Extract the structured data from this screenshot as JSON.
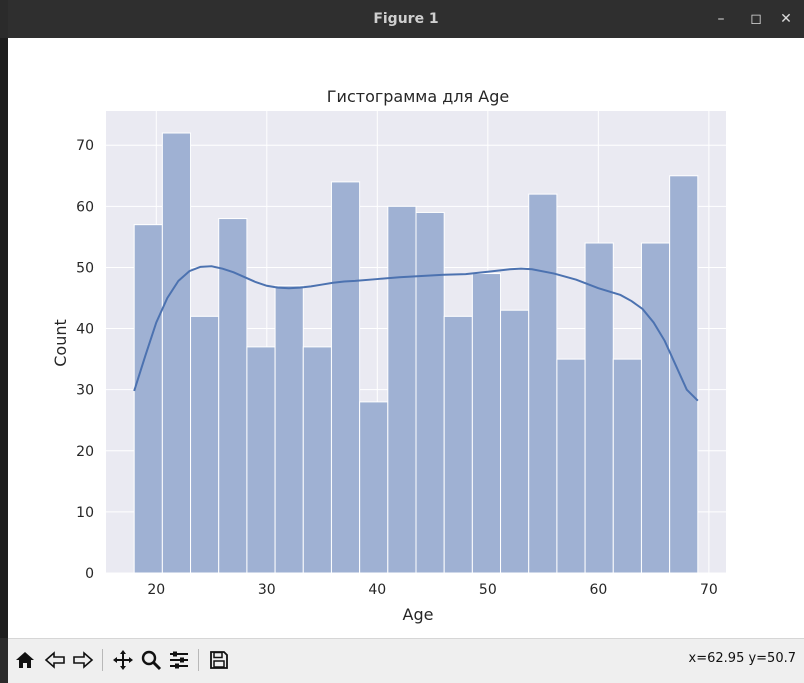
{
  "window": {
    "title": "Figure 1",
    "controls": {
      "minimize": "–",
      "maximize": "◻",
      "close": "✕"
    }
  },
  "toolbar": {
    "buttons": [
      {
        "name": "home",
        "icon": "home-icon"
      },
      {
        "name": "back",
        "icon": "back-arrow-icon"
      },
      {
        "name": "forward",
        "icon": "forward-arrow-icon"
      },
      {
        "name": "pan",
        "icon": "move-icon"
      },
      {
        "name": "zoom",
        "icon": "zoom-icon"
      },
      {
        "name": "configure",
        "icon": "sliders-icon"
      },
      {
        "name": "save",
        "icon": "save-icon"
      }
    ],
    "coords": "x=62.95 y=50.7"
  },
  "colors": {
    "plot_bg": "#eaeaf2",
    "bar_fill": "#9fb1d3",
    "bar_edge": "#ffffff",
    "kde_line": "#4c72b0",
    "grid": "#ffffff"
  },
  "chart_data": {
    "type": "bar",
    "title": "Гистограмма для Age",
    "xlabel": "Age",
    "ylabel": "Count",
    "xlim": [
      15.45,
      71.55
    ],
    "ylim": [
      0,
      75.6
    ],
    "xticks": [
      20,
      30,
      40,
      50,
      60,
      70
    ],
    "yticks": [
      0,
      10,
      20,
      30,
      40,
      50,
      60,
      70
    ],
    "grid": true,
    "bins": {
      "edges": [
        18,
        20.55,
        23.1,
        25.65,
        28.2,
        30.75,
        33.3,
        35.85,
        38.4,
        40.95,
        43.5,
        46.05,
        48.6,
        51.15,
        53.7,
        56.25,
        58.8,
        61.35,
        63.9,
        66.45,
        69
      ],
      "counts": [
        57,
        72,
        42,
        58,
        37,
        47,
        37,
        64,
        28,
        60,
        59,
        42,
        49,
        43,
        62,
        35,
        54,
        35,
        54,
        65
      ]
    },
    "kde": {
      "x": [
        18,
        19,
        20,
        21,
        22,
        23,
        24,
        25,
        26,
        27,
        28,
        29,
        30,
        31,
        32,
        33,
        34,
        35,
        36,
        37,
        38,
        40,
        42,
        44,
        46,
        48,
        50,
        52,
        53,
        54,
        56,
        58,
        60,
        62,
        63,
        64,
        65,
        66,
        67,
        68,
        69
      ],
      "y": [
        29.8,
        35.5,
        41,
        45,
        47.8,
        49.4,
        50.1,
        50.2,
        49.8,
        49.2,
        48.4,
        47.6,
        47,
        46.7,
        46.6,
        46.7,
        46.9,
        47.2,
        47.5,
        47.7,
        47.8,
        48.1,
        48.4,
        48.6,
        48.8,
        48.9,
        49.3,
        49.7,
        49.8,
        49.7,
        49,
        48,
        46.6,
        45.5,
        44.5,
        43.2,
        41,
        38,
        34,
        30,
        28.2
      ]
    }
  }
}
